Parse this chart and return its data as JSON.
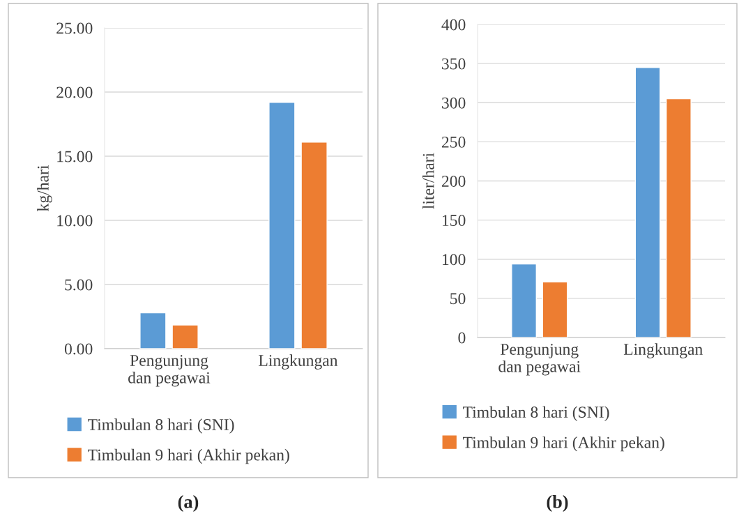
{
  "chart_data": [
    {
      "type": "bar",
      "categories": [
        "Pengunjung\ndan pegawai",
        "Lingkungan"
      ],
      "ylabel": "kg/hari",
      "series": [
        {
          "name": "Timbulan 8 hari (SNI)",
          "color": "#5b9bd5",
          "values": [
            2.8,
            19.2
          ]
        },
        {
          "name": "Timbulan 9 hari (Akhir pekan)",
          "color": "#ed7d31",
          "values": [
            1.85,
            16.1
          ]
        }
      ],
      "ylim": [
        0,
        25
      ],
      "yticks": [
        {
          "value": 0,
          "label": "0.00"
        },
        {
          "value": 5,
          "label": "5.00"
        },
        {
          "value": 10,
          "label": "10.00"
        },
        {
          "value": 15,
          "label": "15.00"
        },
        {
          "value": 20,
          "label": "20.00"
        },
        {
          "value": 25,
          "label": "25.00"
        }
      ],
      "grid": "y",
      "legend": "bottom",
      "annotations": [
        "(a)"
      ]
    },
    {
      "type": "bar",
      "categories": [
        "Pengunjung\ndan pegawai",
        "Lingkungan"
      ],
      "ylabel": "liter/hari",
      "series": [
        {
          "name": "Timbulan 8 hari (SNI)",
          "color": "#5b9bd5",
          "values": [
            94,
            345
          ]
        },
        {
          "name": "Timbulan 9 hari (Akhir pekan)",
          "color": "#ed7d31",
          "values": [
            71,
            305
          ]
        }
      ],
      "ylim": [
        0,
        400
      ],
      "yticks": [
        0,
        50,
        100,
        150,
        200,
        250,
        300,
        350,
        400
      ],
      "grid": "y",
      "legend": "bottom",
      "annotations": [
        "(b)"
      ]
    }
  ]
}
